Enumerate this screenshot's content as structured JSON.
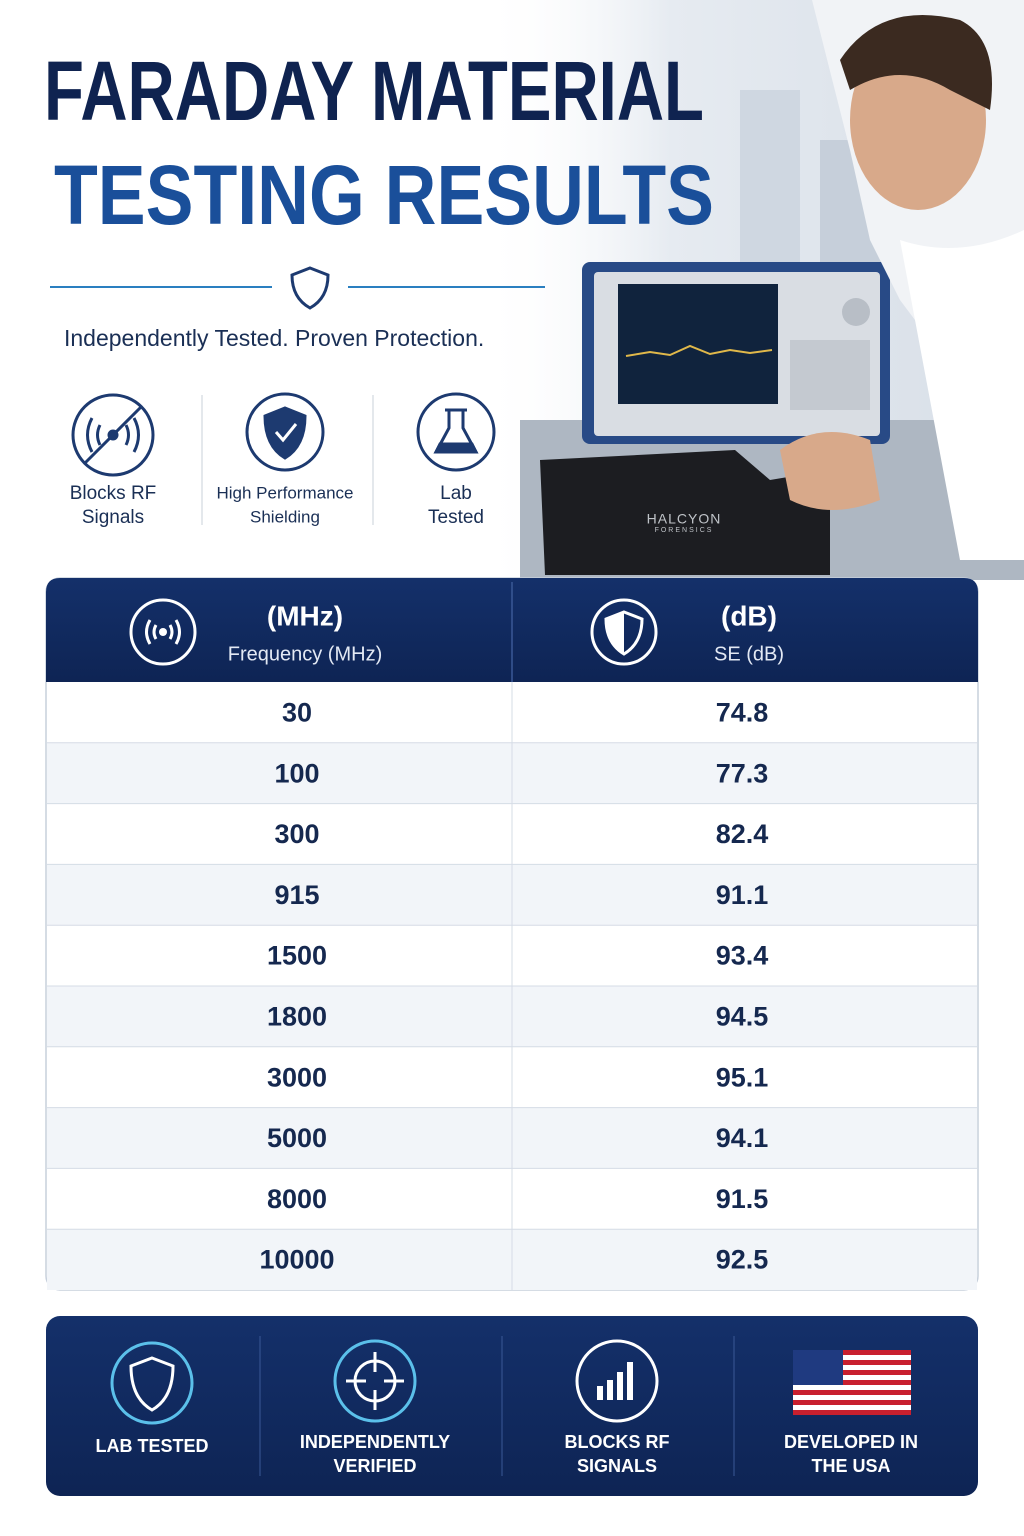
{
  "header": {
    "title_lines": [
      "FARADAY MATERIAL",
      "TESTING RESULTS"
    ],
    "tagline": "Independently Tested. Proven Protection."
  },
  "features": [
    {
      "label_lines": [
        "Blocks RF",
        "Signals"
      ]
    },
    {
      "label_lines": [
        "High Performance",
        "Shielding"
      ]
    },
    {
      "label_lines": [
        "Lab",
        "Tested"
      ]
    }
  ],
  "photo": {
    "brand_lines": [
      "HALCYON",
      "FORENSICS"
    ]
  },
  "table": {
    "columns": [
      {
        "unit": "(MHz)",
        "label": "Frequency (MHz)"
      },
      {
        "unit": "(dB)",
        "label": "SE (dB)"
      }
    ],
    "rows": [
      [
        30,
        74.8
      ],
      [
        100,
        77.3
      ],
      [
        300,
        82.4
      ],
      [
        915,
        91.1
      ],
      [
        1500,
        93.4
      ],
      [
        1800,
        94.5
      ],
      [
        3000,
        95.1
      ],
      [
        5000,
        94.1
      ],
      [
        8000,
        91.5
      ],
      [
        10000,
        92.5
      ]
    ]
  },
  "badges": [
    {
      "label_lines": [
        "LAB TESTED"
      ]
    },
    {
      "label_lines": [
        "INDEPENDENTLY",
        "VERIFIED"
      ]
    },
    {
      "label_lines": [
        "BLOCKS RF",
        "SIGNALS"
      ]
    },
    {
      "label_lines": [
        "DEVELOPED IN",
        "THE USA"
      ]
    }
  ]
}
